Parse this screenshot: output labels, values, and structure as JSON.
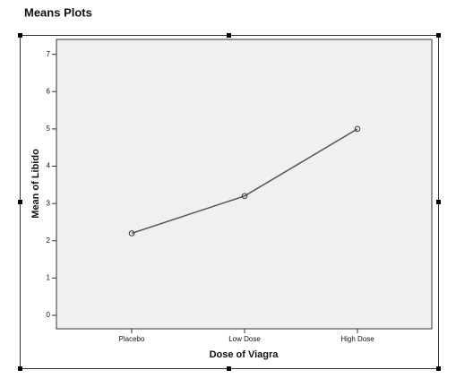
{
  "chart_data": {
    "type": "line",
    "title": "Means Plots",
    "x_label": "Dose of Viagra",
    "y_label": "Mean of Libido",
    "categories": [
      "Placebo",
      "Low Dose",
      "High Dose"
    ],
    "values": [
      2.2,
      3.2,
      5.0
    ],
    "color": "#555555",
    "ylim": [
      -0.36,
      7.4
    ],
    "yticks": [
      0,
      1,
      2,
      3,
      4,
      5,
      6,
      7
    ],
    "grid": false
  }
}
